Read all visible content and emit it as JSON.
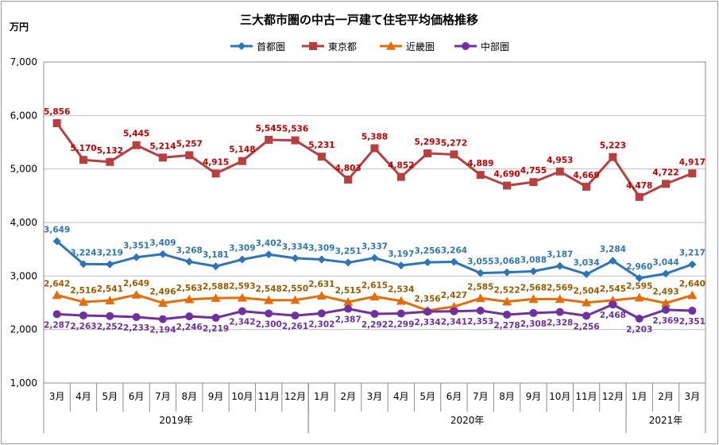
{
  "chart_data": {
    "type": "line",
    "title": "三大都市圏の中古一戸建て住宅平均価格推移",
    "ylabel": "万円",
    "ylim": [
      1000,
      7000
    ],
    "yticks": [
      "1,000",
      "2,000",
      "3,000",
      "4,000",
      "5,000",
      "6,000",
      "7,000"
    ],
    "grid": true,
    "legend_position": "top-center",
    "categories": [
      "3月",
      "4月",
      "5月",
      "6月",
      "7月",
      "8月",
      "9月",
      "10月",
      "11月",
      "12月",
      "1月",
      "2月",
      "3月",
      "4月",
      "5月",
      "6月",
      "7月",
      "8月",
      "9月",
      "10月",
      "11月",
      "12月",
      "1月",
      "2月",
      "3月"
    ],
    "year_groups": [
      {
        "label": "2019年",
        "start": 0,
        "end": 9
      },
      {
        "label": "2020年",
        "start": 10,
        "end": 21
      },
      {
        "label": "2021年",
        "start": 22,
        "end": 24
      }
    ],
    "series": [
      {
        "name": "首都圏",
        "color": "#2E75B6",
        "label_color": "#2E75B6",
        "marker": "diamond",
        "values": [
          3649,
          3224,
          3219,
          3351,
          3409,
          3268,
          3181,
          3309,
          3402,
          3334,
          3309,
          3251,
          3337,
          3197,
          3256,
          3264,
          3055,
          3068,
          3088,
          3187,
          3034,
          3284,
          2960,
          3044,
          3217
        ]
      },
      {
        "name": "東京都",
        "color": "#B5403F",
        "label_color": "#C00000",
        "marker": "square",
        "values": [
          5856,
          5170,
          5132,
          5445,
          5214,
          5257,
          4915,
          5148,
          5545,
          5536,
          5231,
          4803,
          5388,
          4852,
          5293,
          5272,
          4889,
          4690,
          4755,
          4953,
          4669,
          5223,
          4478,
          4722,
          4917
        ]
      },
      {
        "name": "近畿圏",
        "color": "#E46C0A",
        "label_color": "#9C5A00",
        "marker": "triangle",
        "values": [
          2642,
          2516,
          2541,
          2649,
          2496,
          2563,
          2588,
          2593,
          2548,
          2550,
          2631,
          2515,
          2615,
          2534,
          2356,
          2427,
          2585,
          2522,
          2568,
          2569,
          2504,
          2545,
          2595,
          2493,
          2640
        ]
      },
      {
        "name": "中部圏",
        "color": "#7030A0",
        "label_color": "#7030A0",
        "marker": "circle",
        "values": [
          2287,
          2263,
          2252,
          2233,
          2194,
          2246,
          2219,
          2342,
          2300,
          2261,
          2302,
          2387,
          2292,
          2299,
          2334,
          2341,
          2353,
          2278,
          2308,
          2328,
          2256,
          2468,
          2203,
          2369,
          2351
        ]
      }
    ]
  }
}
